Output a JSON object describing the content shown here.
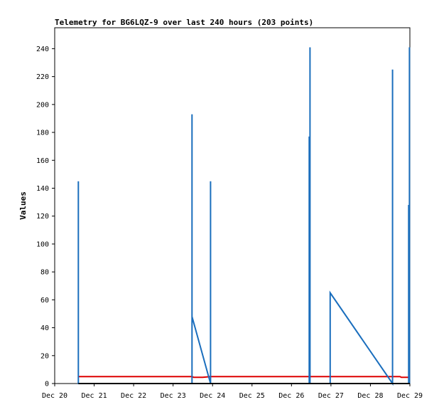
{
  "chart_data": {
    "type": "line",
    "title": "Telemetry for BG6LQZ-9 over last 240 hours (203 points)",
    "xlabel": "",
    "ylabel": "Values",
    "x_ticks": [
      "Dec 20",
      "Dec 21",
      "Dec 22",
      "Dec 23",
      "Dec 24",
      "Dec 25",
      "Dec 26",
      "Dec 27",
      "Dec 28",
      "Dec 29"
    ],
    "xlim": [
      0,
      9
    ],
    "x_units": "days since Dec 20",
    "ylim": [
      0,
      255
    ],
    "y_ticks": [
      0,
      20,
      40,
      60,
      80,
      100,
      120,
      140,
      160,
      180,
      200,
      220,
      240
    ],
    "grid": false,
    "legend": "none",
    "colors": {
      "red_series": "#dd0000",
      "blue_series": "#1a6ebd",
      "black_series": "#000000"
    },
    "series": [
      {
        "color": "#dd0000",
        "points": [
          [
            0.6,
            5
          ],
          [
            3.48,
            5
          ],
          [
            3.52,
            4.5
          ],
          [
            3.75,
            4.5
          ],
          [
            3.95,
            5
          ],
          [
            6.47,
            5
          ],
          [
            6.5,
            5
          ],
          [
            8.75,
            5
          ],
          [
            8.78,
            4.5
          ],
          [
            9.0,
            4.5
          ]
        ]
      },
      {
        "color": "#1a6ebd",
        "points": [
          [
            0.6,
            0
          ],
          [
            0.6,
            145
          ],
          [
            0.6,
            0
          ],
          [
            3.48,
            0
          ],
          [
            3.48,
            193
          ],
          [
            3.48,
            48
          ],
          [
            3.95,
            0
          ],
          [
            3.95,
            145
          ],
          [
            3.95,
            0
          ],
          [
            6.45,
            0
          ],
          [
            6.45,
            177
          ],
          [
            6.47,
            0
          ],
          [
            6.47,
            241
          ],
          [
            6.47,
            0
          ],
          [
            6.98,
            0
          ],
          [
            6.98,
            65
          ],
          [
            8.56,
            0
          ],
          [
            8.56,
            225
          ],
          [
            8.56,
            0
          ],
          [
            8.97,
            0
          ],
          [
            8.97,
            128
          ],
          [
            8.99,
            0
          ],
          [
            8.99,
            241
          ],
          [
            8.99,
            0
          ]
        ]
      },
      {
        "color": "#000000",
        "points": [
          [
            0.6,
            0
          ],
          [
            9.0,
            0
          ]
        ]
      }
    ]
  }
}
